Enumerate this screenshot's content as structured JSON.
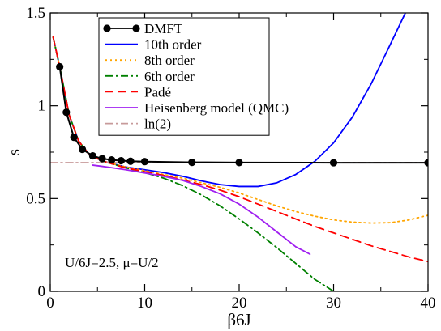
{
  "chart_data": {
    "type": "line",
    "xlabel": "β6J",
    "ylabel": "s",
    "xlim": [
      0,
      40
    ],
    "ylim": [
      0,
      1.5
    ],
    "xticks": [
      "0",
      "10",
      "20",
      "30",
      "40"
    ],
    "yticks": [
      "0",
      "0.5",
      "1",
      "1.5"
    ],
    "grid": false,
    "legend_position": "top-center",
    "annotation": "U/6J=2.5, μ=U/2",
    "series": [
      {
        "name": "DMFT",
        "color": "#000000",
        "style": "solid-markers",
        "x": [
          1,
          1.7,
          2.5,
          3.4,
          4.5,
          5.5,
          6.5,
          7.5,
          8.5,
          10,
          15,
          20,
          30,
          40
        ],
        "y": [
          1.21,
          0.965,
          0.83,
          0.765,
          0.73,
          0.715,
          0.708,
          0.704,
          0.701,
          0.699,
          0.695,
          0.694,
          0.693,
          0.693
        ]
      },
      {
        "name": "10th order",
        "color": "#0000ff",
        "style": "solid",
        "x": [
          0.3,
          1,
          2,
          3,
          4,
          5,
          6,
          8,
          10,
          12,
          14,
          16,
          18,
          20,
          22,
          24,
          26,
          28,
          30,
          32,
          34,
          36,
          37.6
        ],
        "y": [
          1.37,
          1.21,
          0.95,
          0.81,
          0.745,
          0.715,
          0.695,
          0.67,
          0.655,
          0.64,
          0.62,
          0.595,
          0.575,
          0.565,
          0.565,
          0.585,
          0.63,
          0.7,
          0.8,
          0.94,
          1.12,
          1.33,
          1.5
        ]
      },
      {
        "name": "8th order",
        "color": "#ffa500",
        "style": "dotted",
        "x": [
          0.3,
          1,
          2,
          3,
          4,
          5,
          6,
          8,
          10,
          12,
          14,
          16,
          18,
          20,
          22,
          24,
          26,
          28,
          30,
          32,
          34,
          36,
          38,
          40
        ],
        "y": [
          1.37,
          1.21,
          0.95,
          0.81,
          0.745,
          0.715,
          0.695,
          0.67,
          0.65,
          0.63,
          0.61,
          0.585,
          0.56,
          0.53,
          0.495,
          0.46,
          0.43,
          0.405,
          0.385,
          0.373,
          0.368,
          0.37,
          0.385,
          0.41
        ]
      },
      {
        "name": "6th order",
        "color": "#008000",
        "style": "dash-dot",
        "x": [
          0.3,
          1,
          2,
          3,
          4,
          5,
          6,
          8,
          10,
          12,
          14,
          16,
          18,
          20,
          22,
          24,
          26,
          28,
          30
        ],
        "y": [
          1.37,
          1.21,
          0.95,
          0.81,
          0.745,
          0.715,
          0.695,
          0.665,
          0.64,
          0.61,
          0.57,
          0.52,
          0.46,
          0.39,
          0.315,
          0.235,
          0.15,
          0.065,
          0.0
        ]
      },
      {
        "name": "Padé",
        "color": "#ff0000",
        "style": "dashed",
        "x": [
          0.3,
          1,
          2,
          3,
          4,
          5,
          6,
          8,
          10,
          12,
          14,
          16,
          18,
          20,
          22,
          24,
          26,
          28,
          30,
          32,
          34,
          36,
          38,
          40
        ],
        "y": [
          1.37,
          1.21,
          0.95,
          0.81,
          0.745,
          0.715,
          0.695,
          0.665,
          0.645,
          0.625,
          0.6,
          0.575,
          0.545,
          0.51,
          0.47,
          0.43,
          0.39,
          0.35,
          0.315,
          0.28,
          0.245,
          0.215,
          0.185,
          0.16
        ]
      },
      {
        "name": "Heisenberg model (QMC)",
        "color": "#a020f0",
        "style": "solid",
        "x": [
          4.5,
          6,
          8,
          10,
          12,
          14,
          16,
          18,
          20,
          22,
          24,
          26,
          27.5
        ],
        "y": [
          0.68,
          0.67,
          0.655,
          0.638,
          0.62,
          0.598,
          0.565,
          0.525,
          0.47,
          0.4,
          0.32,
          0.24,
          0.2
        ]
      },
      {
        "name": "ln(2)",
        "color": "#c79a9a",
        "style": "dash-dot",
        "x": [
          0,
          40
        ],
        "y": [
          0.693,
          0.693
        ]
      }
    ]
  }
}
